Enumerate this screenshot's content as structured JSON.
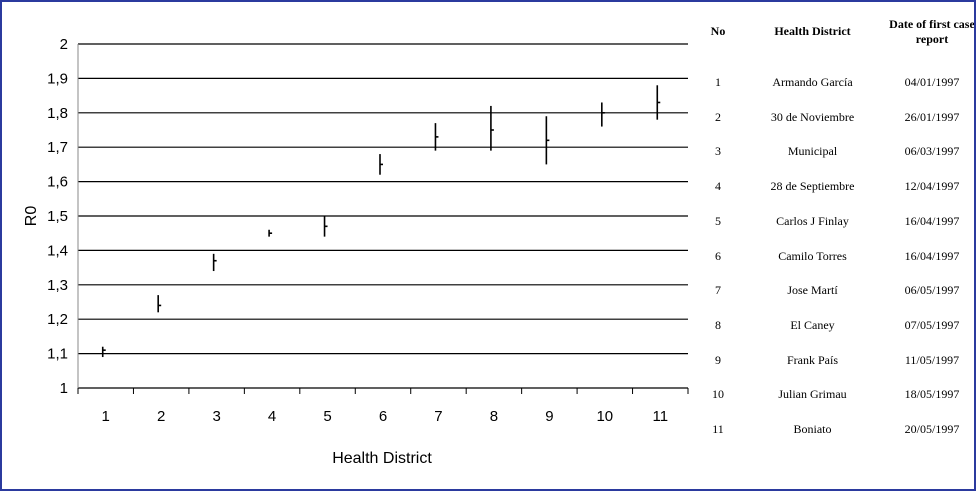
{
  "chart_data": {
    "type": "scatter",
    "title": "",
    "xlabel": "Health District",
    "ylabel": "R0",
    "x": [
      1,
      2,
      3,
      4,
      5,
      6,
      7,
      8,
      9,
      10,
      11
    ],
    "xticks": [
      "1",
      "2",
      "3",
      "4",
      "5",
      "6",
      "7",
      "8",
      "9",
      "10",
      "11"
    ],
    "yticks": [
      "1",
      "1,1",
      "1,2",
      "1,3",
      "1,4",
      "1,5",
      "1,6",
      "1,7",
      "1,8",
      "1,9",
      "2"
    ],
    "ylim": [
      1,
      2
    ],
    "xlim": [
      0.5,
      11.5
    ],
    "grid": true,
    "series": [
      {
        "estimate": [
          1.11,
          1.24,
          1.37,
          1.45,
          1.47,
          1.65,
          1.73,
          1.75,
          1.72,
          1.8,
          1.83
        ],
        "lower": [
          1.09,
          1.22,
          1.34,
          1.44,
          1.44,
          1.62,
          1.69,
          1.69,
          1.65,
          1.76,
          1.78
        ],
        "upper": [
          1.12,
          1.27,
          1.39,
          1.46,
          1.5,
          1.68,
          1.77,
          1.82,
          1.79,
          1.83,
          1.88
        ]
      }
    ]
  },
  "table": {
    "headers": {
      "no": "No",
      "district": "Health District",
      "date": "Date of first case report"
    },
    "rows": [
      {
        "no": "1",
        "district": "Armando García",
        "date": "04/01/1997"
      },
      {
        "no": "2",
        "district": "30 de Noviembre",
        "date": "26/01/1997"
      },
      {
        "no": "3",
        "district": "Municipal",
        "date": "06/03/1997"
      },
      {
        "no": "4",
        "district": "28 de Septiembre",
        "date": "12/04/1997"
      },
      {
        "no": "5",
        "district": "Carlos  J Finlay",
        "date": "16/04/1997"
      },
      {
        "no": "6",
        "district": "Camilo Torres",
        "date": "16/04/1997"
      },
      {
        "no": "7",
        "district": "Jose Martí",
        "date": "06/05/1997"
      },
      {
        "no": "8",
        "district": "El Caney",
        "date": "07/05/1997"
      },
      {
        "no": "9",
        "district": "Frank País",
        "date": "11/05/1997"
      },
      {
        "no": "10",
        "district": "Julian Grimau",
        "date": "18/05/1997"
      },
      {
        "no": "11",
        "district": "Boniato",
        "date": "20/05/1997"
      }
    ]
  },
  "colors": {
    "frame_border": "#2b3a9e",
    "ink": "#000000",
    "background": "#ffffff"
  }
}
